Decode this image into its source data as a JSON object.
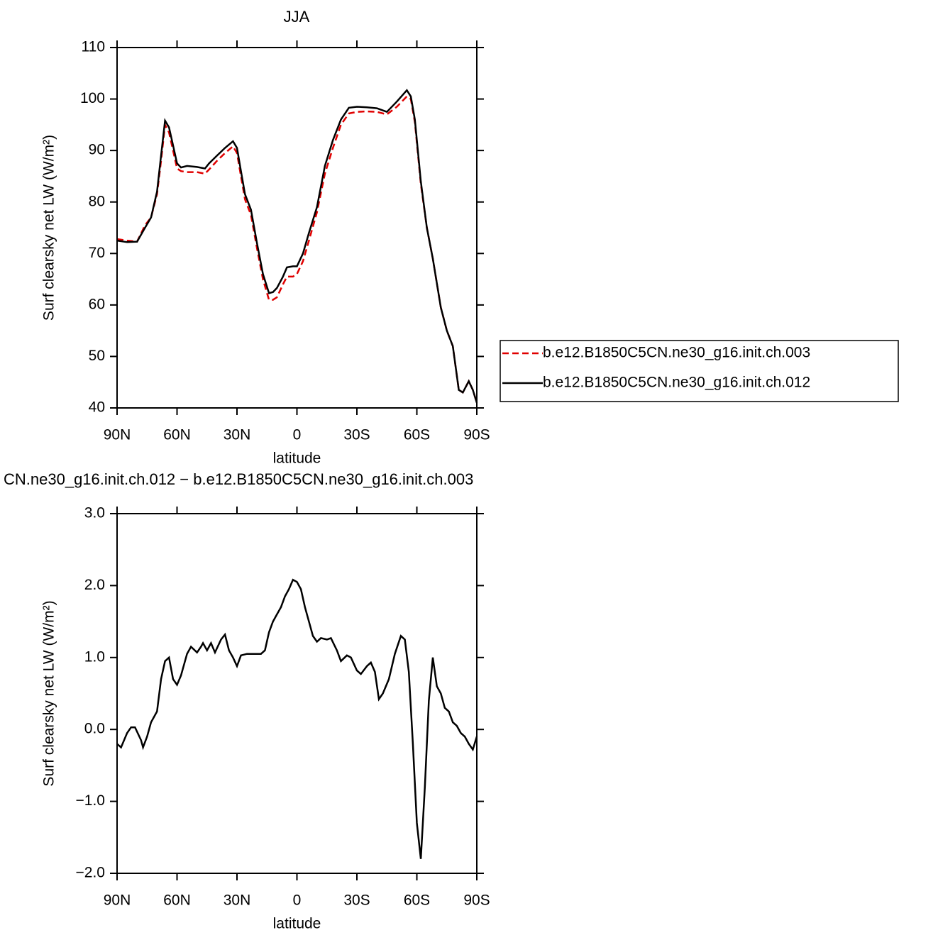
{
  "chart_data": [
    {
      "type": "line",
      "title": "JJA",
      "xlabel": "latitude",
      "ylabel": "Surf clearsky net LW (W/m²)",
      "x": [
        90,
        85,
        80,
        76,
        73,
        70,
        68,
        66,
        64,
        62,
        60,
        58,
        55,
        50,
        46,
        44,
        40,
        36,
        32,
        30,
        28,
        26,
        23,
        20,
        17,
        14,
        12,
        10,
        7,
        5,
        2,
        0,
        -3,
        -6,
        -10,
        -14,
        -18,
        -22,
        -26,
        -30,
        -35,
        -40,
        -45,
        -50,
        -55,
        -57,
        -59,
        -62,
        -65,
        -68,
        -72,
        -75,
        -78,
        -81,
        -83,
        -86,
        -88,
        -90
      ],
      "series": [
        {
          "name": "b.e12.B1850C5CN.ne30_g16.init.ch.003",
          "color": "#e00000",
          "dashed": true,
          "values": [
            72.8,
            72.5,
            72.3,
            75.5,
            77,
            81.5,
            88,
            95,
            93.5,
            90,
            86.5,
            86,
            85.8,
            85.8,
            85.5,
            86.3,
            88,
            89.5,
            90.8,
            89.5,
            85,
            80.5,
            77.5,
            71,
            65,
            61,
            61,
            61.5,
            64,
            65.5,
            65.5,
            66,
            68.5,
            72.5,
            78,
            85.5,
            90.5,
            95,
            97.2,
            97.5,
            97.6,
            97.5,
            97,
            98.5,
            100.5,
            100,
            95.5,
            83.5,
            75,
            69,
            59.5,
            55,
            52,
            43.5,
            43,
            45.2,
            43.5,
            41
          ]
        },
        {
          "name": "b.e12.B1850C5CN.ne30_g16.init.ch.012",
          "color": "#000000",
          "dashed": false,
          "values": [
            72.5,
            72.2,
            72.3,
            75,
            77,
            82,
            89,
            95.8,
            94.5,
            91,
            87.5,
            86.7,
            87,
            86.8,
            86.5,
            87.5,
            89,
            90.5,
            91.8,
            90.5,
            86,
            81.5,
            78.5,
            72,
            66,
            62.3,
            62.5,
            63.3,
            65.5,
            67.3,
            67.5,
            67.5,
            70,
            74,
            79,
            87,
            92,
            96,
            98.3,
            98.5,
            98.4,
            98.2,
            97.5,
            99.5,
            101.7,
            100.5,
            96,
            84,
            75,
            69,
            59.5,
            55,
            52,
            43.5,
            43,
            45.2,
            43.5,
            41
          ]
        }
      ],
      "xlim": [
        90,
        -90
      ],
      "xticks": [
        {
          "value": 90,
          "label": "90N"
        },
        {
          "value": 60,
          "label": "60N"
        },
        {
          "value": 30,
          "label": "30N"
        },
        0,
        {
          "value": -30,
          "label": "30S"
        },
        {
          "value": -60,
          "label": "60S"
        },
        {
          "value": -90,
          "label": "90S"
        }
      ],
      "ylim": [
        40,
        110
      ],
      "yticks": [
        40,
        50,
        60,
        70,
        80,
        90,
        100,
        110
      ],
      "legend": "right"
    },
    {
      "type": "line",
      "title": "CN.ne30_g16.init.ch.012 − b.e12.B1850C5CN.ne30_g16.init.ch.003",
      "xlabel": "latitude",
      "ylabel": "Surf clearsky net LW (W/m²)",
      "x": [
        90,
        88,
        85,
        83,
        81,
        78,
        77,
        75,
        73,
        70,
        68,
        66,
        64,
        62,
        60,
        58,
        55,
        53,
        50,
        48,
        47,
        45,
        43,
        41,
        38,
        36,
        34,
        32,
        30,
        28,
        25,
        23,
        20,
        18,
        16,
        14,
        12,
        10,
        8,
        6,
        4,
        2,
        0,
        -2,
        -4,
        -6,
        -8,
        -10,
        -12,
        -15,
        -17,
        -20,
        -22,
        -25,
        -27,
        -30,
        -32,
        -35,
        -37,
        -39,
        -41,
        -43,
        -46,
        -49,
        -52,
        -54,
        -56,
        -58,
        -60,
        -62,
        -64,
        -66,
        -68,
        -70,
        -72,
        -74,
        -76,
        -78,
        -80,
        -82,
        -84,
        -86,
        -88,
        -90
      ],
      "series": [
        {
          "color": "#000000",
          "dashed": false,
          "values": [
            -0.2,
            -0.25,
            -0.05,
            0.03,
            0.03,
            -0.15,
            -0.25,
            -0.1,
            0.1,
            0.25,
            0.7,
            0.95,
            1.0,
            0.7,
            0.62,
            0.75,
            1.05,
            1.15,
            1.07,
            1.15,
            1.2,
            1.1,
            1.2,
            1.07,
            1.25,
            1.32,
            1.1,
            1.0,
            0.88,
            1.03,
            1.05,
            1.05,
            1.05,
            1.05,
            1.1,
            1.35,
            1.5,
            1.6,
            1.7,
            1.85,
            1.95,
            2.08,
            2.05,
            1.95,
            1.7,
            1.5,
            1.3,
            1.22,
            1.27,
            1.25,
            1.27,
            1.1,
            0.95,
            1.03,
            1.0,
            0.82,
            0.77,
            0.88,
            0.93,
            0.8,
            0.42,
            0.5,
            0.7,
            1.05,
            1.3,
            1.25,
            0.8,
            -0.2,
            -1.3,
            -1.8,
            -0.8,
            0.4,
            1.0,
            0.6,
            0.5,
            0.3,
            0.25,
            0.1,
            0.05,
            -0.05,
            -0.1,
            -0.2,
            -0.28,
            -0.1
          ]
        }
      ],
      "xlim": [
        90,
        -90
      ],
      "xticks": [
        {
          "value": 90,
          "label": "90N"
        },
        {
          "value": 60,
          "label": "60N"
        },
        {
          "value": 30,
          "label": "30N"
        },
        0,
        {
          "value": -30,
          "label": "30S"
        },
        {
          "value": -60,
          "label": "60S"
        },
        {
          "value": -90,
          "label": "90S"
        }
      ],
      "ylim": [
        -2,
        3
      ],
      "yticks": [
        {
          "value": -2,
          "label": "−2.0"
        },
        {
          "value": -1,
          "label": "−1.0"
        },
        {
          "value": 0,
          "label": "0.0"
        },
        {
          "value": 1,
          "label": "1.0"
        },
        {
          "value": 2,
          "label": "2.0"
        },
        {
          "value": 3,
          "label": "3.0"
        }
      ]
    }
  ]
}
